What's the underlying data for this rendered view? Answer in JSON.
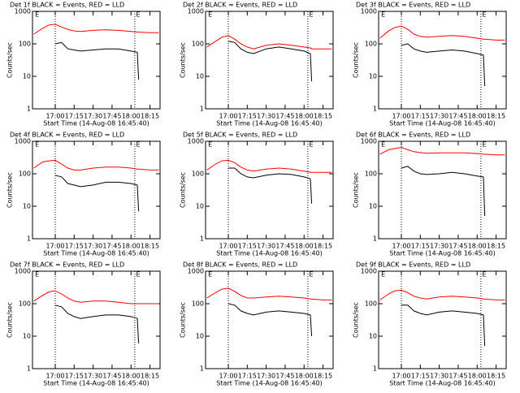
{
  "chart_data": [
    {
      "type": "line",
      "title": "Det 1f BLACK = Events, RED = LLD",
      "y_label": "Counts/sec",
      "x_label": "Start Time (14-Aug-08 16:45:40)",
      "log_y": true,
      "x": [
        "16:43",
        "16:50",
        "16:55",
        "17:00",
        "17:05",
        "17:10",
        "17:15",
        "17:20",
        "17:30",
        "17:40",
        "17:50",
        "18:00",
        "18:05",
        "18:06",
        "18:15",
        "18:22"
      ],
      "series": [
        {
          "color": "#ff0000",
          "values": [
            200,
            300,
            380,
            400,
            330,
            280,
            250,
            240,
            260,
            270,
            260,
            240,
            230,
            230,
            220,
            220
          ]
        },
        {
          "color": "#000000",
          "values": [
            null,
            null,
            null,
            100,
            110,
            70,
            65,
            60,
            65,
            70,
            70,
            60,
            55,
            8,
            null,
            null
          ]
        }
      ],
      "xlim": [
        "16:42",
        "18:23"
      ],
      "xticks": [
        "17:00",
        "17:15",
        "17:30",
        "17:45",
        "18:00",
        "18:15"
      ],
      "ylim": [
        1,
        1000
      ],
      "yticks": [
        1,
        10,
        100,
        1000
      ],
      "vlines": [
        "17:00",
        "18:03"
      ],
      "annotations": [
        {
          "text": "E",
          "x": "16:44"
        },
        {
          "text": "E",
          "x": "18:04"
        }
      ]
    },
    {
      "type": "line",
      "title": "Det 2f BLACK = Events, RED = LLD",
      "y_label": "Counts/sec",
      "x_label": "Start Time (14-Aug-08 16:45:40)",
      "log_y": true,
      "x": [
        "16:43",
        "16:50",
        "16:55",
        "17:00",
        "17:05",
        "17:10",
        "17:15",
        "17:20",
        "17:30",
        "17:40",
        "17:50",
        "18:00",
        "18:05",
        "18:06",
        "18:15",
        "18:22"
      ],
      "series": [
        {
          "color": "#ff0000",
          "values": [
            80,
            120,
            160,
            180,
            140,
            100,
            80,
            70,
            90,
            100,
            90,
            80,
            75,
            70,
            70,
            70
          ]
        },
        {
          "color": "#000000",
          "values": [
            null,
            null,
            null,
            120,
            110,
            70,
            55,
            50,
            70,
            80,
            70,
            60,
            50,
            7,
            null,
            null
          ]
        }
      ],
      "xlim": [
        "16:42",
        "18:23"
      ],
      "xticks": [
        "17:00",
        "17:15",
        "17:30",
        "17:45",
        "18:00",
        "18:15"
      ],
      "ylim": [
        1,
        1000
      ],
      "yticks": [
        1,
        10,
        100,
        1000
      ],
      "vlines": [
        "17:00",
        "18:03"
      ],
      "annotations": [
        {
          "text": "E",
          "x": "16:44"
        },
        {
          "text": "E",
          "x": "18:04"
        }
      ]
    },
    {
      "type": "line",
      "title": "Det 3f BLACK = Events, RED = LLD",
      "y_label": "Counts/sec",
      "x_label": "Start Time (14-Aug-08 16:45:40)",
      "log_y": true,
      "x": [
        "16:43",
        "16:50",
        "16:55",
        "17:00",
        "17:05",
        "17:10",
        "17:15",
        "17:20",
        "17:30",
        "17:40",
        "17:50",
        "18:00",
        "18:05",
        "18:06",
        "18:15",
        "18:22"
      ],
      "series": [
        {
          "color": "#ff0000",
          "values": [
            150,
            250,
            320,
            350,
            280,
            200,
            170,
            160,
            170,
            180,
            170,
            150,
            140,
            140,
            130,
            130
          ]
        },
        {
          "color": "#000000",
          "values": [
            null,
            null,
            null,
            90,
            100,
            70,
            60,
            55,
            60,
            65,
            60,
            50,
            45,
            5,
            null,
            null
          ]
        }
      ],
      "xlim": [
        "16:42",
        "18:23"
      ],
      "xticks": [
        "17:00",
        "17:15",
        "17:30",
        "17:45",
        "18:00",
        "18:15"
      ],
      "ylim": [
        1,
        1000
      ],
      "yticks": [
        1,
        10,
        100,
        1000
      ],
      "vlines": [
        "17:00",
        "18:03"
      ],
      "annotations": [
        {
          "text": "E",
          "x": "16:44"
        },
        {
          "text": "E",
          "x": "18:04"
        }
      ]
    },
    {
      "type": "line",
      "title": "Det 4f BLACK = Events, RED = LLD",
      "y_label": "Counts/sec",
      "x_label": "Start Time (14-Aug-08 16:45:40)",
      "log_y": true,
      "x": [
        "16:43",
        "16:50",
        "16:55",
        "17:00",
        "17:05",
        "17:10",
        "17:15",
        "17:20",
        "17:30",
        "17:40",
        "17:50",
        "18:00",
        "18:05",
        "18:06",
        "18:15",
        "18:22"
      ],
      "series": [
        {
          "color": "#ff0000",
          "values": [
            150,
            230,
            250,
            260,
            200,
            150,
            130,
            130,
            150,
            160,
            160,
            150,
            140,
            140,
            130,
            130
          ]
        },
        {
          "color": "#000000",
          "values": [
            null,
            null,
            null,
            90,
            80,
            50,
            45,
            40,
            45,
            55,
            55,
            50,
            45,
            7,
            null,
            null
          ]
        }
      ],
      "xlim": [
        "16:42",
        "18:23"
      ],
      "xticks": [
        "17:00",
        "17:15",
        "17:30",
        "17:45",
        "18:00",
        "18:15"
      ],
      "ylim": [
        1,
        1000
      ],
      "yticks": [
        1,
        10,
        100,
        1000
      ],
      "vlines": [
        "17:00",
        "18:03"
      ],
      "annotations": [
        {
          "text": "E",
          "x": "16:44"
        },
        {
          "text": "E",
          "x": "18:04"
        }
      ]
    },
    {
      "type": "line",
      "title": "Det 5f BLACK = Events, RED = LLD",
      "y_label": "Counts/sec",
      "x_label": "Start Time (14-Aug-08 16:45:40)",
      "log_y": true,
      "x": [
        "16:43",
        "16:50",
        "16:55",
        "17:00",
        "17:05",
        "17:10",
        "17:15",
        "17:20",
        "17:30",
        "17:40",
        "17:50",
        "18:00",
        "18:05",
        "18:06",
        "18:15",
        "18:22"
      ],
      "series": [
        {
          "color": "#ff0000",
          "values": [
            130,
            200,
            250,
            260,
            220,
            160,
            130,
            120,
            140,
            150,
            140,
            120,
            110,
            110,
            110,
            110
          ]
        },
        {
          "color": "#000000",
          "values": [
            null,
            null,
            null,
            150,
            150,
            100,
            80,
            75,
            90,
            100,
            95,
            80,
            70,
            12,
            null,
            null
          ]
        }
      ],
      "xlim": [
        "16:42",
        "18:23"
      ],
      "xticks": [
        "17:00",
        "17:15",
        "17:30",
        "17:45",
        "18:00",
        "18:15"
      ],
      "ylim": [
        1,
        1000
      ],
      "yticks": [
        1,
        10,
        100,
        1000
      ],
      "vlines": [
        "17:00",
        "18:03"
      ],
      "annotations": [
        {
          "text": "E",
          "x": "16:44"
        },
        {
          "text": "E",
          "x": "18:04"
        }
      ]
    },
    {
      "type": "line",
      "title": "Det 6f BLACK = Events, RED = LLD",
      "y_label": "Counts/sec",
      "x_label": "Start Time (14-Aug-08 16:45:40)",
      "log_y": true,
      "x": [
        "16:43",
        "16:50",
        "16:55",
        "17:00",
        "17:05",
        "17:10",
        "17:15",
        "17:20",
        "17:30",
        "17:40",
        "17:50",
        "18:00",
        "18:05",
        "18:06",
        "18:15",
        "18:22"
      ],
      "series": [
        {
          "color": "#ff0000",
          "values": [
            400,
            550,
            600,
            650,
            550,
            480,
            450,
            430,
            440,
            440,
            440,
            420,
            400,
            400,
            380,
            380
          ]
        },
        {
          "color": "#000000",
          "values": [
            null,
            null,
            null,
            150,
            170,
            120,
            100,
            95,
            100,
            110,
            100,
            85,
            80,
            5,
            null,
            null
          ]
        }
      ],
      "xlim": [
        "16:42",
        "18:23"
      ],
      "xticks": [
        "17:00",
        "17:15",
        "17:30",
        "17:45",
        "18:00",
        "18:15"
      ],
      "ylim": [
        1,
        1000
      ],
      "yticks": [
        1,
        10,
        100,
        1000
      ],
      "vlines": [
        "17:00",
        "18:03"
      ],
      "annotations": [
        {
          "text": "E",
          "x": "16:44"
        },
        {
          "text": "E",
          "x": "18:04"
        }
      ]
    },
    {
      "type": "line",
      "title": "Det 7f BLACK = Events, RED = LLD",
      "y_label": "Counts/sec",
      "x_label": "Start Time (14-Aug-08 16:45:40)",
      "log_y": true,
      "x": [
        "16:43",
        "16:50",
        "16:55",
        "17:00",
        "17:05",
        "17:10",
        "17:15",
        "17:20",
        "17:30",
        "17:40",
        "17:50",
        "18:00",
        "18:05",
        "18:06",
        "18:15",
        "18:22"
      ],
      "series": [
        {
          "color": "#ff0000",
          "values": [
            120,
            180,
            230,
            250,
            200,
            150,
            120,
            110,
            120,
            120,
            110,
            100,
            100,
            100,
            100,
            100
          ]
        },
        {
          "color": "#000000",
          "values": [
            null,
            null,
            null,
            90,
            80,
            50,
            40,
            35,
            40,
            45,
            45,
            40,
            35,
            6,
            null,
            null
          ]
        }
      ],
      "xlim": [
        "16:42",
        "18:23"
      ],
      "xticks": [
        "17:00",
        "17:15",
        "17:30",
        "17:45",
        "18:00",
        "18:15"
      ],
      "ylim": [
        1,
        1000
      ],
      "yticks": [
        1,
        10,
        100,
        1000
      ],
      "vlines": [
        "17:00",
        "18:03"
      ],
      "annotations": [
        {
          "text": "E",
          "x": "16:44"
        },
        {
          "text": "E",
          "x": "18:04"
        }
      ]
    },
    {
      "type": "line",
      "title": "Det 8f BLACK = Events, RED = LLD",
      "y_label": "Counts/sec",
      "x_label": "Start Time (14-Aug-08 16:45:40)",
      "log_y": true,
      "x": [
        "16:43",
        "16:50",
        "16:55",
        "17:00",
        "17:05",
        "17:10",
        "17:15",
        "17:20",
        "17:30",
        "17:40",
        "17:50",
        "18:00",
        "18:05",
        "18:06",
        "18:15",
        "18:22"
      ],
      "series": [
        {
          "color": "#ff0000",
          "values": [
            150,
            220,
            280,
            300,
            240,
            180,
            150,
            150,
            160,
            170,
            160,
            150,
            140,
            140,
            130,
            130
          ]
        },
        {
          "color": "#000000",
          "values": [
            null,
            null,
            null,
            100,
            90,
            60,
            50,
            45,
            55,
            60,
            55,
            50,
            45,
            10,
            null,
            null
          ]
        }
      ],
      "xlim": [
        "16:42",
        "18:23"
      ],
      "xticks": [
        "17:00",
        "17:15",
        "17:30",
        "17:45",
        "18:00",
        "18:15"
      ],
      "ylim": [
        1,
        1000
      ],
      "yticks": [
        1,
        10,
        100,
        1000
      ],
      "vlines": [
        "17:00",
        "18:03"
      ],
      "annotations": [
        {
          "text": "E",
          "x": "16:44"
        },
        {
          "text": "E",
          "x": "18:04"
        }
      ]
    },
    {
      "type": "line",
      "title": "Det 9f BLACK = Events, RED = LLD",
      "y_label": "Counts/sec",
      "x_label": "Start Time (14-Aug-08 16:45:40)",
      "log_y": true,
      "x": [
        "16:43",
        "16:50",
        "16:55",
        "17:00",
        "17:05",
        "17:10",
        "17:15",
        "17:20",
        "17:30",
        "17:40",
        "17:50",
        "18:00",
        "18:05",
        "18:06",
        "18:15",
        "18:22"
      ],
      "series": [
        {
          "color": "#ff0000",
          "values": [
            130,
            200,
            250,
            260,
            220,
            170,
            150,
            140,
            160,
            170,
            160,
            150,
            140,
            140,
            130,
            130
          ]
        },
        {
          "color": "#000000",
          "values": [
            null,
            null,
            null,
            90,
            90,
            60,
            50,
            45,
            55,
            60,
            55,
            50,
            45,
            5,
            null,
            null
          ]
        }
      ],
      "xlim": [
        "16:42",
        "18:23"
      ],
      "xticks": [
        "17:00",
        "17:15",
        "17:30",
        "17:45",
        "18:00",
        "18:15"
      ],
      "ylim": [
        1,
        1000
      ],
      "yticks": [
        1,
        10,
        100,
        1000
      ],
      "vlines": [
        "17:00",
        "18:03"
      ],
      "annotations": [
        {
          "text": "E",
          "x": "16:44"
        },
        {
          "text": "E",
          "x": "18:04"
        }
      ]
    }
  ]
}
